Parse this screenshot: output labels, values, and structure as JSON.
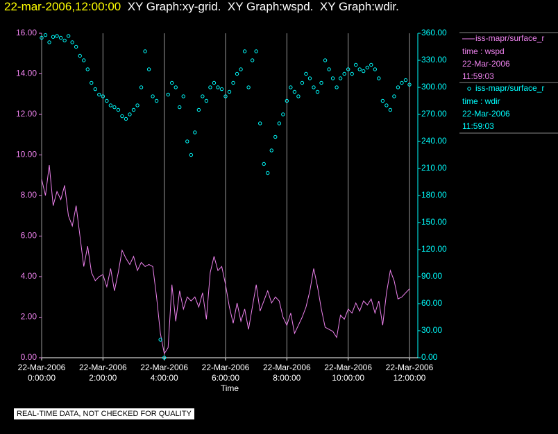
{
  "chart_data": {
    "type": "line",
    "title_time": "22-mar-2006,12:00:00",
    "title": "XY Graph:xy-grid.  XY Graph:wspd.  XY Graph:wdir.",
    "xlabel": "Time",
    "footer": "REAL-TIME DATA, NOT CHECKED FOR QUALITY",
    "xlim": [
      0,
      12
    ],
    "xticks": [
      {
        "value": 0,
        "label": "22-Mar-2006\n0:00:00"
      },
      {
        "value": 2,
        "label": "22-Mar-2006\n2:00:00"
      },
      {
        "value": 4,
        "label": "22-Mar-2006\n4:00:00"
      },
      {
        "value": 6,
        "label": "22-Mar-2006\n6:00:00"
      },
      {
        "value": 8,
        "label": "22-Mar-2006\n8:00:00"
      },
      {
        "value": 10,
        "label": "22-Mar-2006\n10:00:00"
      },
      {
        "value": 12,
        "label": "22-Mar-2006\n12:00:00"
      }
    ],
    "grid": true,
    "ylim": [
      0,
      16
    ],
    "yticks": [
      {
        "value": 0,
        "label": "0.00"
      },
      {
        "value": 2,
        "label": "2.00"
      },
      {
        "value": 4,
        "label": "4.00"
      },
      {
        "value": 6,
        "label": "6.00"
      },
      {
        "value": 8,
        "label": "8.00"
      },
      {
        "value": 10,
        "label": "10.00"
      },
      {
        "value": 12,
        "label": "12.00"
      },
      {
        "value": 14,
        "label": "14.00"
      },
      {
        "value": 16,
        "label": "16.00"
      }
    ],
    "y2lim": [
      0,
      360
    ],
    "y2ticks": [
      {
        "value": 0,
        "label": "0.00"
      },
      {
        "value": 30,
        "label": "30.00"
      },
      {
        "value": 60,
        "label": "60.00"
      },
      {
        "value": 90,
        "label": "90.00"
      },
      {
        "value": 120,
        "label": "120.00"
      },
      {
        "value": 150,
        "label": "150.00"
      },
      {
        "value": 180,
        "label": "180.00"
      },
      {
        "value": 210,
        "label": "210.00"
      },
      {
        "value": 240,
        "label": "240.00"
      },
      {
        "value": 270,
        "label": "270.00"
      },
      {
        "value": 300,
        "label": "300.00"
      },
      {
        "value": 330,
        "label": "330.00"
      },
      {
        "value": 360,
        "label": "360.00"
      }
    ],
    "x": [
      0,
      0.125,
      0.25,
      0.375,
      0.5,
      0.625,
      0.75,
      0.875,
      1,
      1.125,
      1.25,
      1.375,
      1.5,
      1.625,
      1.75,
      1.875,
      2,
      2.125,
      2.25,
      2.375,
      2.5,
      2.625,
      2.75,
      2.875,
      3,
      3.125,
      3.25,
      3.375,
      3.5,
      3.625,
      3.75,
      3.875,
      4,
      4.125,
      4.25,
      4.375,
      4.5,
      4.625,
      4.75,
      4.875,
      5,
      5.125,
      5.25,
      5.375,
      5.5,
      5.625,
      5.75,
      5.875,
      6,
      6.125,
      6.25,
      6.375,
      6.5,
      6.625,
      6.75,
      6.875,
      7,
      7.125,
      7.25,
      7.375,
      7.5,
      7.625,
      7.75,
      7.875,
      8,
      8.125,
      8.25,
      8.375,
      8.5,
      8.625,
      8.75,
      8.875,
      9,
      9.125,
      9.25,
      9.375,
      9.5,
      9.625,
      9.75,
      9.875,
      10,
      10.125,
      10.25,
      10.375,
      10.5,
      10.625,
      10.75,
      10.875,
      11,
      11.125,
      11.25,
      11.375,
      11.5,
      11.625,
      11.75,
      11.875,
      12
    ],
    "series": [
      {
        "name": "iss-mapr/surface_r",
        "legend_lines": [
          "time : wspd",
          "22-Mar-2006",
          "11:59:03"
        ],
        "color": "#ee82ee",
        "type": "line",
        "values": [
          8.8,
          8.0,
          9.5,
          7.5,
          8.2,
          7.8,
          8.5,
          7.0,
          6.5,
          7.5,
          6.0,
          4.5,
          5.5,
          4.2,
          3.8,
          4.0,
          4.1,
          3.5,
          4.4,
          3.3,
          4.2,
          5.3,
          4.9,
          4.6,
          5.0,
          4.3,
          4.7,
          4.5,
          4.6,
          4.5,
          3.0,
          1.2,
          0.2,
          0.5,
          3.6,
          1.8,
          3.3,
          2.4,
          3.0,
          2.8,
          3.0,
          2.5,
          3.2,
          1.9,
          4.2,
          5.0,
          4.3,
          4.5,
          3.6,
          2.5,
          1.7,
          2.7,
          1.8,
          2.4,
          1.4,
          2.5,
          3.6,
          2.3,
          2.8,
          3.3,
          2.7,
          3.0,
          2.8,
          2.0,
          1.6,
          2.2,
          1.2,
          1.6,
          2.0,
          2.5,
          3.3,
          4.4,
          3.5,
          2.4,
          1.5,
          1.4,
          1.3,
          1.0,
          2.1,
          1.9,
          2.4,
          2.2,
          2.7,
          2.3,
          2.8,
          2.6,
          2.9,
          2.2,
          2.8,
          1.6,
          3.2,
          4.3,
          3.8,
          2.9,
          3.0,
          3.2,
          3.4
        ]
      },
      {
        "name": "iss-mapr/surface_r",
        "legend_lines": [
          "time : wdir",
          "22-Mar-2006",
          "11:59:03"
        ],
        "color": "#00ffff",
        "type": "scatter",
        "axis": "y2",
        "values": [
          355,
          358,
          350,
          356,
          357,
          355,
          352,
          357,
          350,
          345,
          335,
          330,
          320,
          305,
          298,
          292,
          290,
          285,
          280,
          278,
          275,
          268,
          265,
          270,
          275,
          280,
          300,
          340,
          320,
          290,
          285,
          20,
          0,
          292,
          305,
          300,
          278,
          290,
          240,
          225,
          250,
          275,
          290,
          285,
          300,
          305,
          300,
          298,
          290,
          295,
          305,
          315,
          320,
          340,
          300,
          330,
          340,
          260,
          215,
          205,
          230,
          245,
          260,
          270,
          285,
          300,
          295,
          290,
          305,
          315,
          310,
          300,
          295,
          305,
          330,
          320,
          310,
          300,
          310,
          315,
          320,
          315,
          325,
          320,
          318,
          322,
          325,
          320,
          310,
          285,
          280,
          275,
          290,
          300,
          305,
          308,
          303
        ]
      }
    ]
  }
}
